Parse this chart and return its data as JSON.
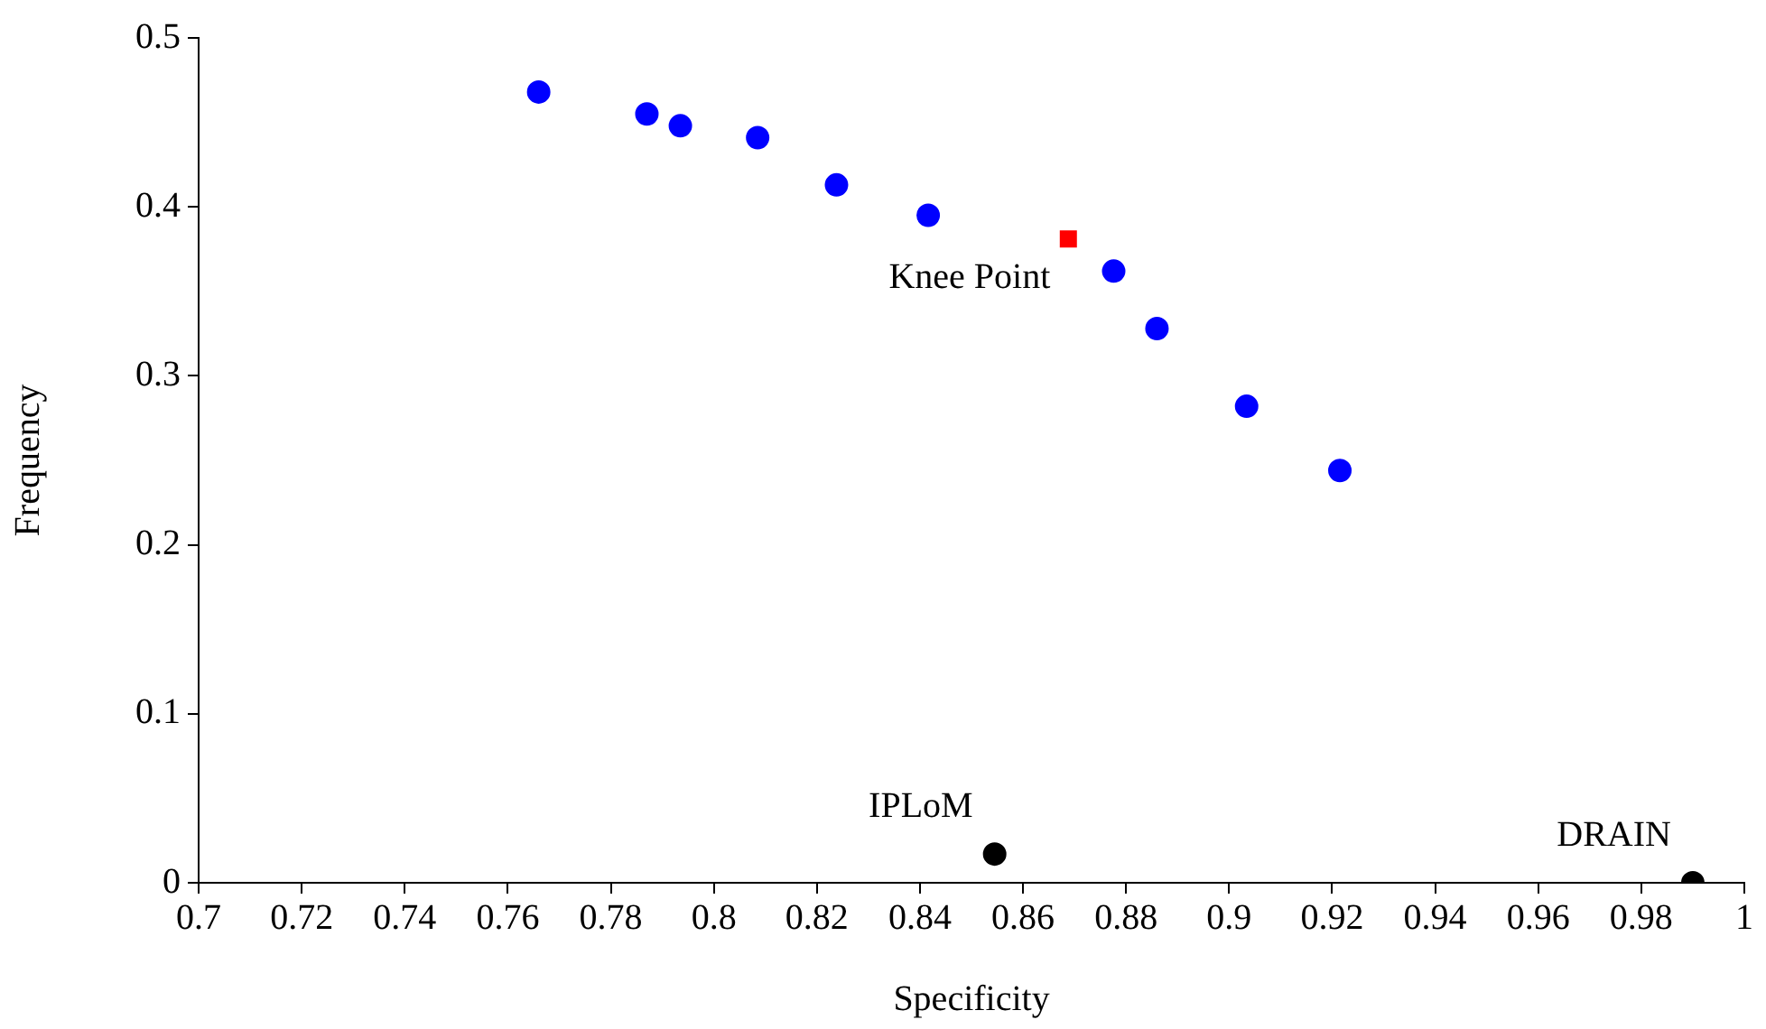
{
  "chart_data": {
    "type": "scatter",
    "xlabel": "Specificity",
    "ylabel": "Frequency",
    "xlim": [
      0.7,
      1
    ],
    "xticks": [
      0.7,
      0.72,
      0.74,
      0.76,
      0.78,
      0.8,
      0.82,
      0.84,
      0.86,
      0.88,
      0.9,
      0.92,
      0.94,
      0.96,
      0.98,
      1
    ],
    "ylim": [
      0,
      0.5
    ],
    "yticks": [
      0,
      0.1,
      0.2,
      0.3,
      0.4,
      0.5
    ],
    "grid": false,
    "legend": false,
    "series": [
      {
        "color": "#0000ff",
        "marker": "circle",
        "x": [
          0.766,
          0.787,
          0.7935,
          0.8085,
          0.8238,
          0.8416,
          0.8776,
          0.886,
          0.9034,
          0.9215
        ],
        "values": [
          0.468,
          0.455,
          0.448,
          0.441,
          0.413,
          0.395,
          0.362,
          0.328,
          0.282,
          0.244
        ]
      },
      {
        "color": "#ff0000",
        "marker": "square",
        "x": [
          0.8688
        ],
        "values": [
          0.381
        ]
      },
      {
        "color": "#000000",
        "marker": "circle",
        "x": [
          0.8545,
          0.99
        ],
        "values": [
          0.017,
          0
        ]
      }
    ],
    "annotations": [
      {
        "text": "Knee Point",
        "x": 0.8688,
        "y": 0.381
      },
      {
        "text": "IPLoM",
        "x": 0.8545,
        "y": 0.017
      },
      {
        "text": "DRAIN",
        "x": 0.99,
        "y": 0
      }
    ]
  }
}
